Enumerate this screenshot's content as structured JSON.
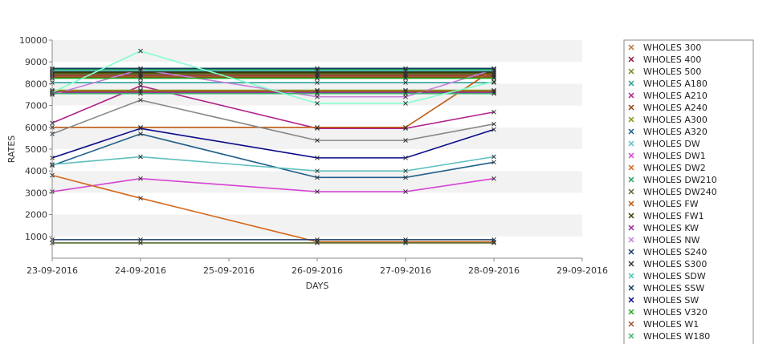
{
  "chart_data": {
    "type": "line",
    "title": "",
    "xlabel": "DAYS",
    "ylabel": "RATES",
    "x_ticks": [
      "23-09-2016",
      "24-09-2016",
      "25-09-2016",
      "26-09-2016",
      "27-09-2016",
      "28-09-2016",
      "29-09-2016"
    ],
    "x": [
      "23-09-2016",
      "24-09-2016",
      "26-09-2016",
      "27-09-2016",
      "28-09-2016"
    ],
    "y_ticks": [
      "1000",
      "2000",
      "3000",
      "4000",
      "5000",
      "6000",
      "7000",
      "8000",
      "9000",
      "10000"
    ],
    "ylim": [
      0,
      10000
    ],
    "xlim": [
      "23-09-2016",
      "29-09-2016"
    ],
    "grid": "horizontal alternating bands",
    "legend_position": "right",
    "series": [
      {
        "name": "WHOLES 300",
        "color": "#b87333",
        "values": [
          8350,
          8350,
          8350,
          8350,
          8350
        ]
      },
      {
        "name": "WHOLES 400",
        "color": "#8b1a4a",
        "values": [
          8400,
          8400,
          8400,
          8400,
          8400
        ]
      },
      {
        "name": "WHOLES 500",
        "color": "#6b8e23",
        "values": [
          8450,
          8450,
          8450,
          8450,
          8450
        ]
      },
      {
        "name": "WHOLES A180",
        "color": "#2aa198",
        "values": [
          8050,
          8050,
          8050,
          8050,
          8050
        ]
      },
      {
        "name": "WHOLES A210",
        "color": "#b0228c",
        "values": [
          6200,
          7900,
          5950,
          5950,
          6700
        ]
      },
      {
        "name": "WHOLES A240",
        "color": "#8b4513",
        "values": [
          8300,
          8300,
          8300,
          8300,
          8300
        ]
      },
      {
        "name": "WHOLES A300",
        "color": "#7f9a1a",
        "values": [
          7700,
          7700,
          7700,
          7700,
          7700
        ]
      },
      {
        "name": "WHOLES A320",
        "color": "#1f5f8b",
        "values": [
          4250,
          5700,
          3700,
          3700,
          4400
        ]
      },
      {
        "name": "WHOLES DW",
        "color": "#5fbfbf",
        "values": [
          4300,
          4650,
          4000,
          4000,
          4650
        ]
      },
      {
        "name": "WHOLES DW1",
        "color": "#d444d4",
        "values": [
          3050,
          3650,
          3050,
          3050,
          3650
        ]
      },
      {
        "name": "WHOLES DW2",
        "color": "#d2691e",
        "values": [
          3800,
          2750,
          750,
          750,
          750
        ]
      },
      {
        "name": "WHOLES DW210",
        "color": "#2e9e5e",
        "values": [
          8650,
          8650,
          8650,
          8650,
          8650
        ]
      },
      {
        "name": "WHOLES DW240",
        "color": "#556b2f",
        "values": [
          700,
          700,
          700,
          700,
          700
        ]
      },
      {
        "name": "WHOLES FW",
        "color": "#c05a10",
        "values": [
          6000,
          6000,
          6000,
          6000,
          8650
        ]
      },
      {
        "name": "WHOLES FW1",
        "color": "#3d3d00",
        "values": [
          8500,
          8500,
          8500,
          8500,
          8500
        ]
      },
      {
        "name": "WHOLES KW",
        "color": "#9a2a9a",
        "values": [
          7600,
          7600,
          7600,
          7600,
          7600
        ]
      },
      {
        "name": "WHOLES NW",
        "color": "#c77ddb",
        "values": [
          7500,
          8650,
          7400,
          7400,
          8650
        ]
      },
      {
        "name": "WHOLES S240",
        "color": "#1a3a6a",
        "values": [
          850,
          850,
          850,
          850,
          850
        ]
      },
      {
        "name": "WHOLES S300",
        "color": "#333333",
        "values": [
          8550,
          8550,
          8550,
          8550,
          8550
        ]
      },
      {
        "name": "WHOLES SDW",
        "color": "#48c9b0",
        "values": [
          8600,
          8600,
          8600,
          8600,
          8600
        ]
      },
      {
        "name": "WHOLES SSW",
        "color": "#0b3d5c",
        "values": [
          8700,
          8700,
          8700,
          8700,
          8700
        ]
      },
      {
        "name": "WHOLES SW",
        "color": "#0a0a8a",
        "values": [
          4600,
          5950,
          4600,
          4600,
          5900
        ]
      },
      {
        "name": "WHOLES V320",
        "color": "#22aa22",
        "values": [
          8250,
          8250,
          8250,
          8250,
          8250
        ]
      },
      {
        "name": "WHOLES W1",
        "color": "#a0522d",
        "values": [
          7650,
          7650,
          7650,
          7650,
          7650
        ]
      },
      {
        "name": "WHOLES W180",
        "color": "#3cb371",
        "values": [
          7550,
          7550,
          7550,
          7550,
          7550
        ]
      },
      {
        "name": "",
        "color": "#888888",
        "values": [
          5700,
          7250,
          5400,
          5400,
          6150
        ]
      },
      {
        "name": "",
        "color": "#80ffcc",
        "values": [
          7600,
          9500,
          7100,
          7100,
          8100
        ]
      }
    ]
  }
}
